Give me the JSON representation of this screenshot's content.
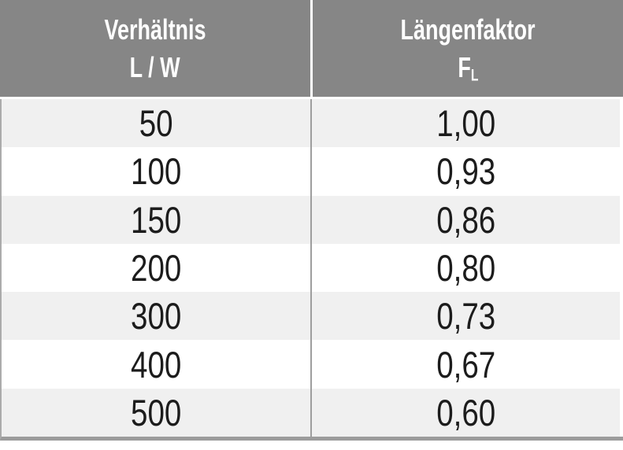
{
  "table": {
    "header": {
      "ratio": {
        "line1": "Verhältnis",
        "line2": "L / W"
      },
      "factor": {
        "line1": "Längenfaktor",
        "symbol": "F",
        "symbol_sub": "L"
      }
    },
    "rows": [
      {
        "lw": "50",
        "fl": "1,00"
      },
      {
        "lw": "100",
        "fl": "0,93"
      },
      {
        "lw": "150",
        "fl": "0,86"
      },
      {
        "lw": "200",
        "fl": "0,80"
      },
      {
        "lw": "300",
        "fl": "0,73"
      },
      {
        "lw": "400",
        "fl": "0,67"
      },
      {
        "lw": "500",
        "fl": "0,60"
      }
    ]
  },
  "colors": {
    "header_bg": "#868686",
    "header_text": "#ffffff",
    "row_alt_bg": "#f0f0f0",
    "row_bg": "#ffffff",
    "body_text": "#1c1c1c",
    "divider_gray": "#9e9e9e",
    "bottom_bar": "#9c9c9c"
  },
  "chart_data": {
    "type": "table",
    "columns": [
      "Verhältnis L / W",
      "Längenfaktor FL"
    ],
    "categories": [
      50,
      100,
      150,
      200,
      300,
      400,
      500
    ],
    "series": [
      {
        "name": "Längenfaktor FL",
        "values": [
          1.0,
          0.93,
          0.86,
          0.8,
          0.73,
          0.67,
          0.6
        ]
      }
    ],
    "title": "",
    "legend_position": "none",
    "grid": false
  }
}
